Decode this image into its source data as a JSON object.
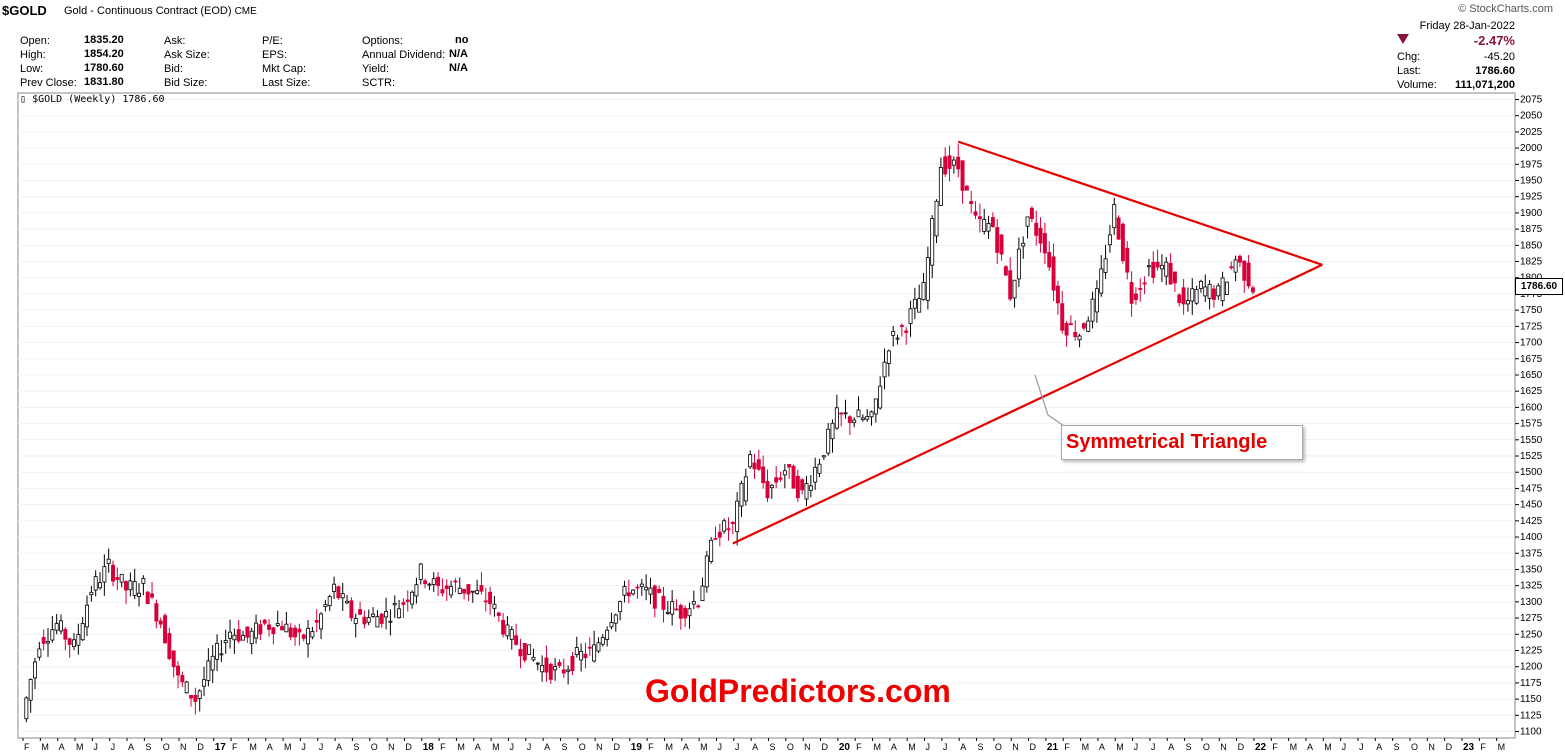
{
  "header": {
    "symbol": "$GOLD",
    "name": "Gold - Continuous Contract (EOD)",
    "exchange": "CME",
    "brand": "© StockCharts.com"
  },
  "quote": {
    "open_label": "Open:",
    "open": "1835.20",
    "high_label": "High:",
    "high": "1854.20",
    "low_label": "Low:",
    "low": "1780.60",
    "prev_close_label": "Prev Close:",
    "prev_close": "1831.80",
    "ask_label": "Ask:",
    "ask_size_label": "Ask Size:",
    "bid_label": "Bid:",
    "bid_size_label": "Bid Size:",
    "pe_label": "P/E:",
    "eps_label": "EPS:",
    "mkt_cap_label": "Mkt Cap:",
    "last_size_label": "Last Size:",
    "options_label": "Options:",
    "options": "no",
    "annual_div_label": "Annual Dividend:",
    "annual_div": "N/A",
    "yield_label": "Yield:",
    "yield": "N/A",
    "sctr_label": "SCTR:"
  },
  "right_panel": {
    "date": "Friday   28-Jan-2022",
    "pct_change": "-2.47%",
    "chg_label": "Chg:",
    "chg": "-45.20",
    "last_label": "Last:",
    "last": "1786.60",
    "volume_label": "Volume:",
    "volume": "111,071,200",
    "down_color": "#8b1538"
  },
  "legend": "$GOLD (Weekly) 1786.60",
  "annotation": "Symmetrical Triangle",
  "watermark": "GoldPredictors.com",
  "last_price_tag": "1786.60",
  "chart_data": {
    "type": "candlestick",
    "series_name": "$GOLD (Weekly)",
    "x_axis": {
      "month_labels": [
        "F",
        "M",
        "A",
        "M",
        "J",
        "J",
        "A",
        "S",
        "O",
        "N",
        "D",
        "17",
        "F",
        "M",
        "A",
        "M",
        "J",
        "J",
        "A",
        "S",
        "O",
        "N",
        "D",
        "18",
        "F",
        "M",
        "A",
        "M",
        "J",
        "J",
        "A",
        "S",
        "O",
        "N",
        "D",
        "19",
        "F",
        "M",
        "A",
        "M",
        "J",
        "J",
        "A",
        "S",
        "O",
        "N",
        "D",
        "20",
        "F",
        "M",
        "A",
        "M",
        "J",
        "J",
        "A",
        "S",
        "O",
        "N",
        "D",
        "21",
        "F",
        "M",
        "A",
        "M",
        "J",
        "J",
        "A",
        "S",
        "O",
        "N",
        "D",
        "22",
        "F",
        "M",
        "A",
        "M",
        "J",
        "J",
        "A",
        "S",
        "O",
        "N",
        "D",
        "23",
        "F",
        "M"
      ],
      "year_labels": [
        "17",
        "18",
        "19",
        "20",
        "21",
        "22",
        "23"
      ]
    },
    "y_axis": {
      "ticks": [
        1100,
        1125,
        1150,
        1175,
        1200,
        1225,
        1250,
        1275,
        1300,
        1325,
        1350,
        1375,
        1400,
        1425,
        1450,
        1475,
        1500,
        1525,
        1550,
        1575,
        1600,
        1625,
        1650,
        1675,
        1700,
        1725,
        1750,
        1775,
        1800,
        1825,
        1850,
        1875,
        1900,
        1925,
        1950,
        1975,
        2000,
        2025,
        2050,
        2075
      ],
      "range": [
        1090,
        2085
      ],
      "side": "right"
    },
    "up_color": "#000000",
    "down_color": "#d6003a",
    "close_path": [
      [
        "2016-02",
        1120
      ],
      [
        "2016-03",
        1240
      ],
      [
        "2016-04",
        1265
      ],
      [
        "2016-05",
        1230
      ],
      [
        "2016-06",
        1320
      ],
      [
        "2016-07",
        1355
      ],
      [
        "2016-08",
        1320
      ],
      [
        "2016-09",
        1325
      ],
      [
        "2016-10",
        1270
      ],
      [
        "2016-11",
        1180
      ],
      [
        "2016-12",
        1150
      ],
      [
        "2017-01",
        1210
      ],
      [
        "2017-02",
        1255
      ],
      [
        "2017-03",
        1245
      ],
      [
        "2017-04",
        1265
      ],
      [
        "2017-05",
        1265
      ],
      [
        "2017-06",
        1240
      ],
      [
        "2017-07",
        1265
      ],
      [
        "2017-08",
        1320
      ],
      [
        "2017-09",
        1280
      ],
      [
        "2017-10",
        1275
      ],
      [
        "2017-11",
        1280
      ],
      [
        "2017-12",
        1300
      ],
      [
        "2018-01",
        1345
      ],
      [
        "2018-02",
        1320
      ],
      [
        "2018-03",
        1325
      ],
      [
        "2018-04",
        1315
      ],
      [
        "2018-05",
        1300
      ],
      [
        "2018-06",
        1250
      ],
      [
        "2018-07",
        1225
      ],
      [
        "2018-08",
        1200
      ],
      [
        "2018-09",
        1190
      ],
      [
        "2018-10",
        1215
      ],
      [
        "2018-11",
        1225
      ],
      [
        "2018-12",
        1280
      ],
      [
        "2019-01",
        1320
      ],
      [
        "2019-02",
        1315
      ],
      [
        "2019-03",
        1295
      ],
      [
        "2019-04",
        1285
      ],
      [
        "2019-05",
        1305
      ],
      [
        "2019-06",
        1410
      ],
      [
        "2019-07",
        1415
      ],
      [
        "2019-08",
        1525
      ],
      [
        "2019-09",
        1470
      ],
      [
        "2019-10",
        1505
      ],
      [
        "2019-11",
        1465
      ],
      [
        "2019-12",
        1520
      ],
      [
        "2020-01",
        1585
      ],
      [
        "2020-02",
        1585
      ],
      [
        "2020-03",
        1580
      ],
      [
        "2020-04",
        1700
      ],
      [
        "2020-05",
        1730
      ],
      [
        "2020-06",
        1780
      ],
      [
        "2020-07",
        1975
      ],
      [
        "2020-08",
        1970
      ],
      [
        "2020-09",
        1885
      ],
      [
        "2020-10",
        1880
      ],
      [
        "2020-11",
        1775
      ],
      [
        "2020-12",
        1895
      ],
      [
        "2021-01",
        1850
      ],
      [
        "2021-02",
        1730
      ],
      [
        "2021-03",
        1715
      ],
      [
        "2021-04",
        1770
      ],
      [
        "2021-05",
        1905
      ],
      [
        "2021-06",
        1770
      ],
      [
        "2021-07",
        1815
      ],
      [
        "2021-08",
        1815
      ],
      [
        "2021-09",
        1755
      ],
      [
        "2021-10",
        1785
      ],
      [
        "2021-11",
        1775
      ],
      [
        "2021-12",
        1830
      ],
      [
        "2022-01",
        1787
      ]
    ],
    "last_close": 1786.6,
    "trendlines": [
      {
        "name": "upper",
        "from": [
          "2020-08",
          2010
        ],
        "to": [
          "2022-05",
          1820
        ]
      },
      {
        "name": "lower",
        "from": [
          "2019-07",
          1390
        ],
        "to": [
          "2022-05",
          1820
        ]
      }
    ],
    "line_color": "#e60000"
  }
}
